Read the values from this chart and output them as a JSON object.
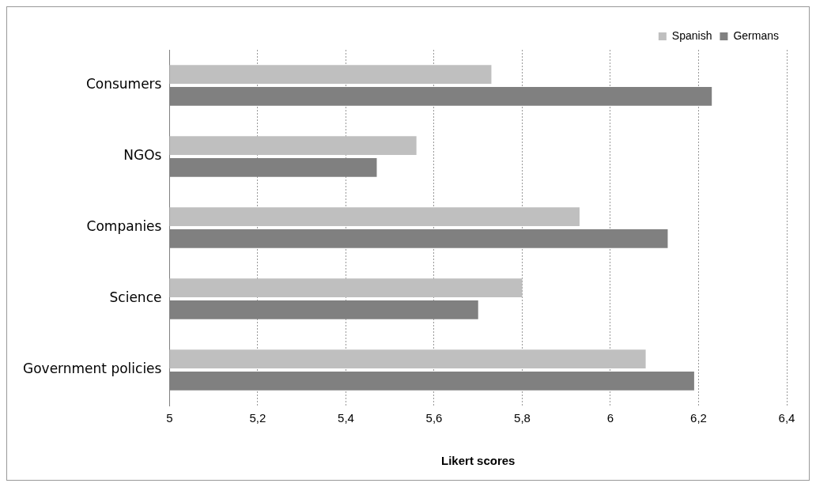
{
  "chart_data": {
    "type": "bar",
    "orientation": "horizontal",
    "xlabel": "Likert scores",
    "categories": [
      "Consumers",
      "NGOs",
      "Companies",
      "Science",
      "Government policies"
    ],
    "series": [
      {
        "name": "Spanish",
        "color": "#bfbfbf",
        "values": [
          5.73,
          5.56,
          5.93,
          5.8,
          6.08
        ]
      },
      {
        "name": "Germans",
        "color": "#808080",
        "values": [
          6.23,
          5.47,
          6.13,
          5.7,
          6.19
        ]
      }
    ],
    "xlim": [
      5,
      6.4
    ],
    "xticks": [
      5,
      {
        "value": 5.2,
        "label": "5,2"
      },
      {
        "value": 5.4,
        "label": "5,4"
      },
      {
        "value": 5.6,
        "label": "5,6"
      },
      {
        "value": 5.8,
        "label": "5,8"
      },
      6,
      {
        "value": 6.2,
        "label": "6,2"
      },
      {
        "value": 6.4,
        "label": "6,4"
      }
    ],
    "grid": "x",
    "legend": "top right"
  }
}
